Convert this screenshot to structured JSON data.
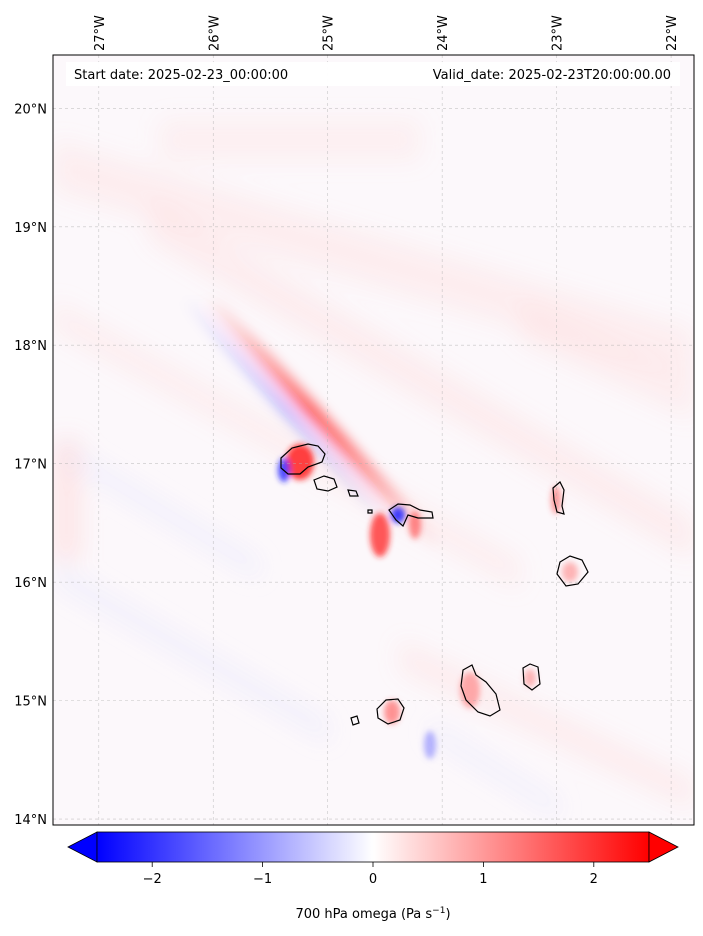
{
  "map": {
    "start_label": "Start date: 2025-02-23_00:00:00",
    "valid_label": "Valid_date: 2025-02-23T20:00:00.00",
    "lon_ticks": [
      {
        "value": -27,
        "label": "27°W"
      },
      {
        "value": -26,
        "label": "26°W"
      },
      {
        "value": -25,
        "label": "25°W"
      },
      {
        "value": -24,
        "label": "24°W"
      },
      {
        "value": -23,
        "label": "23°W"
      },
      {
        "value": -22,
        "label": "22°W"
      }
    ],
    "lat_ticks": [
      {
        "value": 14,
        "label": "14°N"
      },
      {
        "value": 15,
        "label": "15°N"
      },
      {
        "value": 16,
        "label": "16°N"
      },
      {
        "value": 17,
        "label": "17°N"
      },
      {
        "value": 18,
        "label": "18°N"
      },
      {
        "value": 19,
        "label": "19°N"
      },
      {
        "value": 20,
        "label": "20°N"
      }
    ],
    "lon_range": [
      -27.4,
      -21.8
    ],
    "lat_range": [
      13.95,
      20.45
    ],
    "gridlines": true,
    "islands": [
      "Santo Antão",
      "São Vicente",
      "Santa Luzia",
      "São Nicolau",
      "Sal",
      "Boa Vista",
      "Maio",
      "Santiago",
      "Fogo",
      "Brava"
    ]
  },
  "colorbar": {
    "label_prefix": "700 hPa omega (Pa s",
    "label_exp": "−1",
    "label_suffix": ")",
    "range": [
      -2.5,
      2.5
    ],
    "extend": "both",
    "colormap": "bwr",
    "ticks": [
      {
        "value": -2,
        "label": "−2"
      },
      {
        "value": -1,
        "label": "−1"
      },
      {
        "value": 0,
        "label": "0"
      },
      {
        "value": 1,
        "label": "1"
      },
      {
        "value": 2,
        "label": "2"
      }
    ],
    "colors": {
      "min": "#0000ff",
      "mid": "#ffffff",
      "max": "#ff0000"
    }
  }
}
